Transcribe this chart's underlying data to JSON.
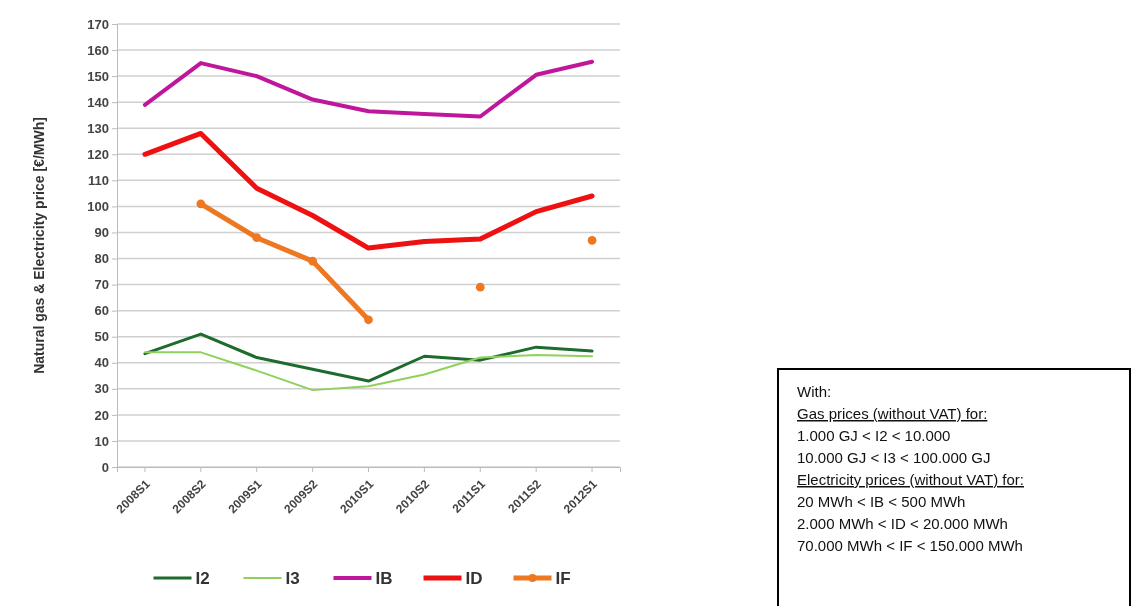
{
  "chart_data": {
    "type": "line",
    "ylabel": "Natural gas & Electricity price [€/MWh]",
    "categories": [
      "2008S1",
      "2008S2",
      "2009S1",
      "2009S2",
      "2010S1",
      "2010S2",
      "2011S1",
      "2011S2",
      "2012S1"
    ],
    "series": [
      {
        "name": "I2",
        "color": "#1e6b2e",
        "values": [
          43.5,
          51,
          42,
          37.5,
          33,
          42.5,
          41,
          46,
          44.5
        ]
      },
      {
        "name": "I3",
        "color": "#8fd15a",
        "values": [
          44,
          44,
          37,
          29.5,
          31,
          35.5,
          42,
          43,
          42.5
        ]
      },
      {
        "name": "IB",
        "color": "#c0169c",
        "values": [
          139,
          155,
          150,
          141,
          136.5,
          135.5,
          134.5,
          150.5,
          155.5
        ]
      },
      {
        "name": "ID",
        "color": "#ee1111",
        "values": [
          120,
          128,
          107,
          96.5,
          84,
          86.5,
          87.5,
          98,
          104
        ]
      },
      {
        "name": "IF",
        "color": "#ee7722",
        "marker": "circle",
        "values": [
          null,
          101,
          88,
          79,
          56.5,
          null,
          69,
          null,
          87
        ]
      }
    ],
    "ylim": [
      0,
      170
    ],
    "yticks": [
      0,
      10,
      20,
      30,
      40,
      50,
      60,
      70,
      80,
      90,
      100,
      110,
      120,
      130,
      140,
      150,
      160,
      170
    ],
    "grid": "y",
    "legend": "bottom",
    "annotations": [
      "With:",
      "Gas prices (without VAT) for:",
      "1.000 GJ < I2 < 10.000",
      "10.000 GJ < I3 < 100.000 GJ",
      "Electricity prices (without VAT) for:",
      "20 MWh < IB < 500 MWh",
      "2.000 MWh < ID < 20.000 MWh",
      "70.000 MWh < IF < 150.000 MWh"
    ]
  }
}
